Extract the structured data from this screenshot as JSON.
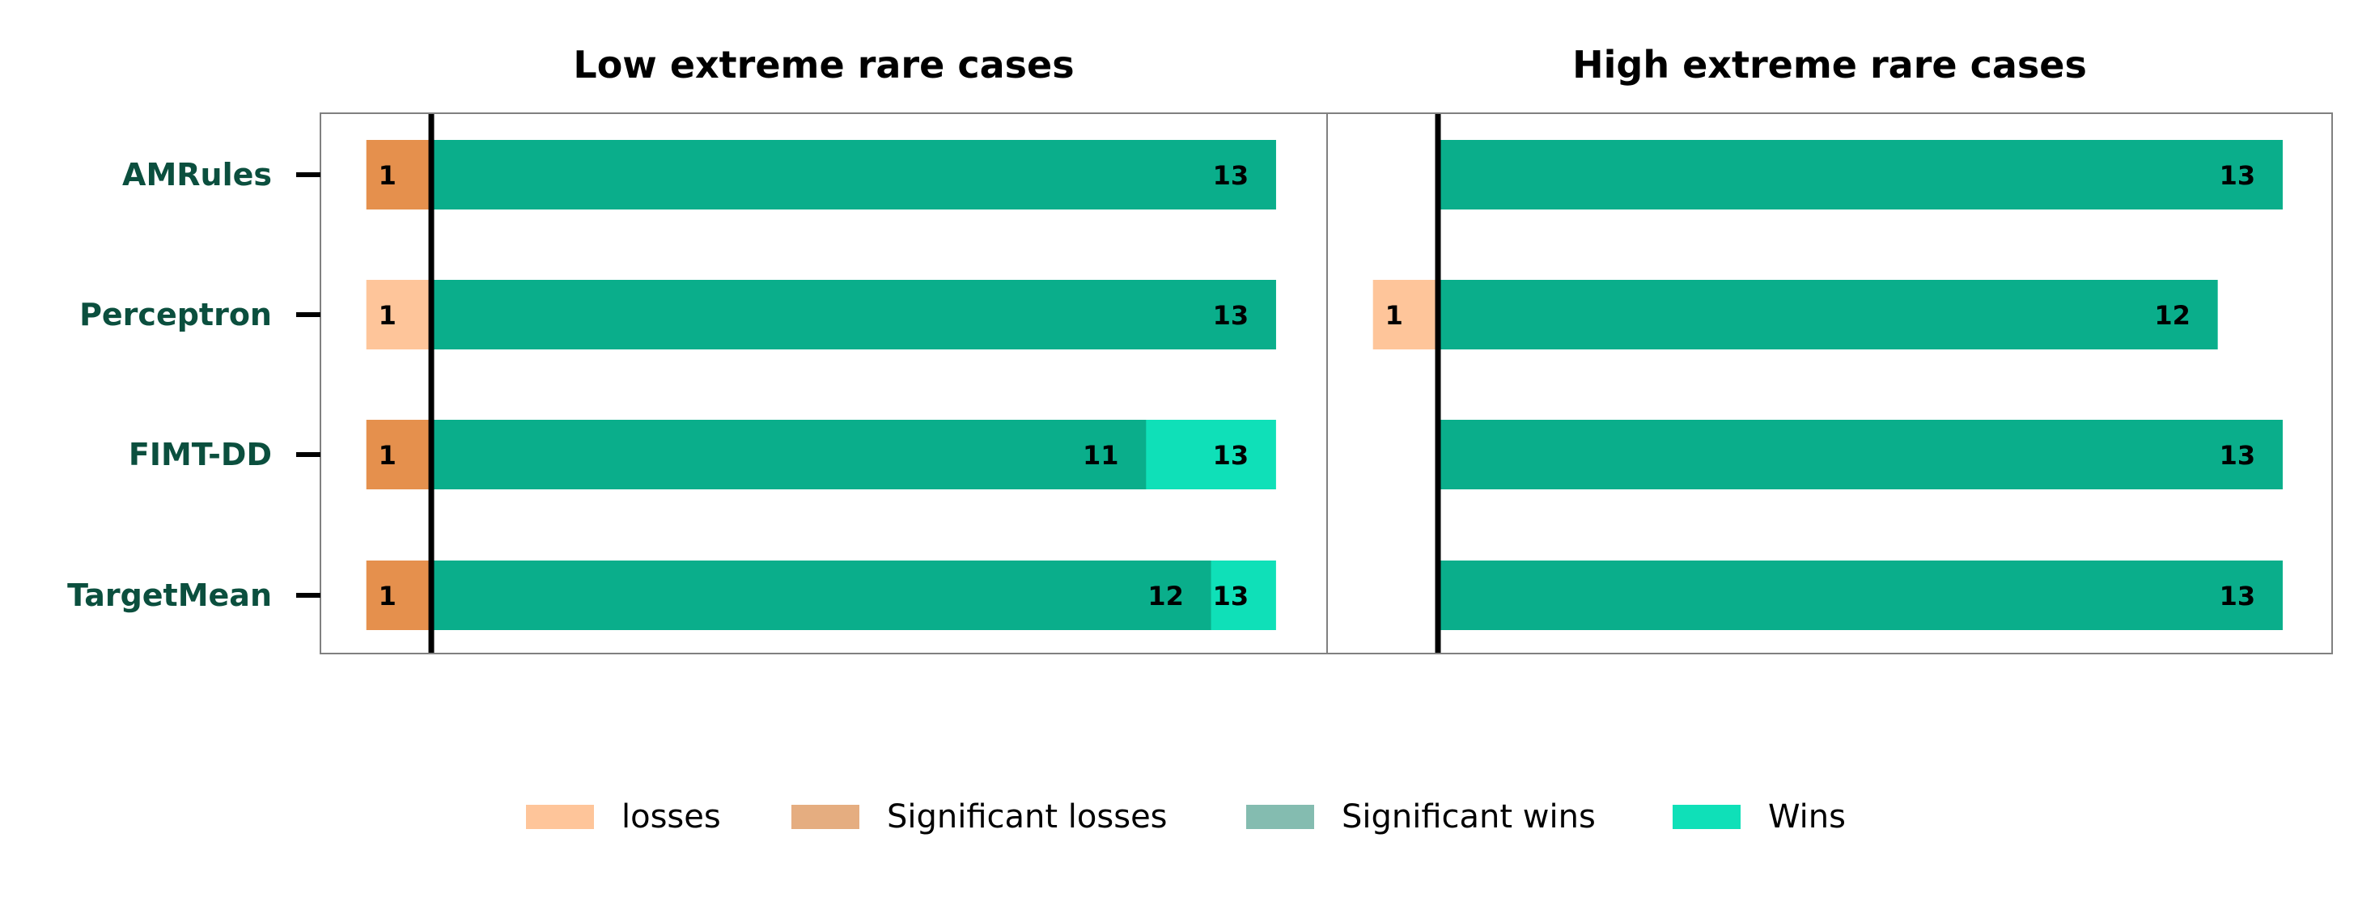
{
  "chart_data": {
    "type": "bar",
    "orientation": "horizontal",
    "stacked": true,
    "categories": [
      "AMRules",
      "Perceptron",
      "FIMT-DD",
      "TargetMean"
    ],
    "legend": {
      "placement": "bottom-center",
      "entries": [
        "losses",
        "Significant losses",
        "Significant wins",
        "Wins"
      ]
    },
    "colors": {
      "losses": "#fec59a",
      "significant_losses": "#e5904d",
      "significant_wins": "#0aae8b",
      "wins": "#0fe0b8",
      "legend_significant_losses": "#e5ad80",
      "legend_significant_wins": "#84bcb0",
      "ytick_label": "#0b4f3e"
    },
    "panels": [
      {
        "title": "Low extreme rare cases",
        "xlim": [
          -1,
          13
        ],
        "rows": [
          {
            "category": "AMRules",
            "losses": 0,
            "significant_losses": 1,
            "significant_wins": 13,
            "wins": 13,
            "loss_label": "1",
            "sigwin_label": "",
            "win_label": "13"
          },
          {
            "category": "Perceptron",
            "losses": 1,
            "significant_losses": 0,
            "significant_wins": 13,
            "wins": 13,
            "loss_label": "1",
            "sigwin_label": "",
            "win_label": "13"
          },
          {
            "category": "FIMT-DD",
            "losses": 0,
            "significant_losses": 1,
            "significant_wins": 11,
            "wins": 13,
            "loss_label": "1",
            "sigwin_label": "11",
            "win_label": "13"
          },
          {
            "category": "TargetMean",
            "losses": 0,
            "significant_losses": 1,
            "significant_wins": 12,
            "wins": 13,
            "loss_label": "1",
            "sigwin_label": "12",
            "win_label": "13"
          }
        ]
      },
      {
        "title": "High extreme rare cases",
        "xlim": [
          -1,
          13
        ],
        "rows": [
          {
            "category": "AMRules",
            "losses": 0,
            "significant_losses": 0,
            "significant_wins": 13,
            "wins": 13,
            "loss_label": "",
            "sigwin_label": "",
            "win_label": "13"
          },
          {
            "category": "Perceptron",
            "losses": 1,
            "significant_losses": 0,
            "significant_wins": 12,
            "wins": 12,
            "loss_label": "1",
            "sigwin_label": "",
            "win_label": "12"
          },
          {
            "category": "FIMT-DD",
            "losses": 0,
            "significant_losses": 0,
            "significant_wins": 13,
            "wins": 13,
            "loss_label": "",
            "sigwin_label": "",
            "win_label": "13"
          },
          {
            "category": "TargetMean",
            "losses": 0,
            "significant_losses": 0,
            "significant_wins": 13,
            "wins": 13,
            "loss_label": "",
            "sigwin_label": "",
            "win_label": "13"
          }
        ]
      }
    ]
  }
}
